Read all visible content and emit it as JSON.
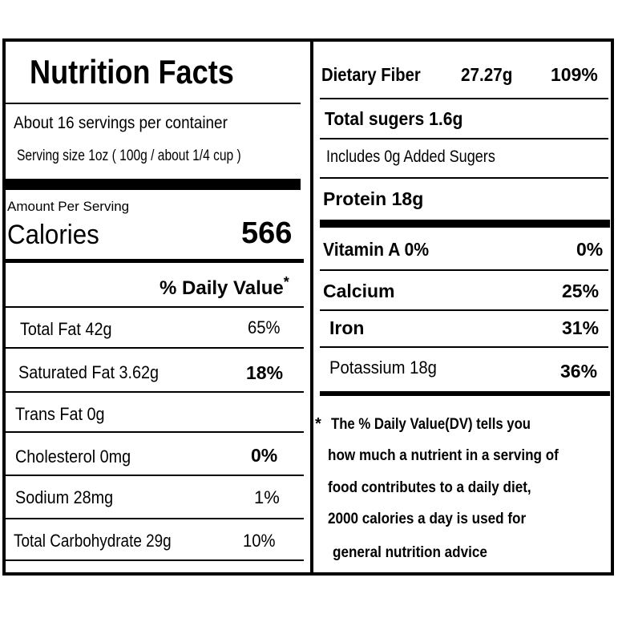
{
  "title": "Nutrition Facts",
  "servings_per_container": "About 16 servings per container",
  "serving_size": "Serving size 1oz ( 100g / about 1/4 cup )",
  "amount_per_serving": "Amount Per Serving",
  "calories_label": "Calories",
  "calories_value": "566",
  "daily_value_header": "% Daily Value",
  "daily_value_asterisk": "*",
  "left_rows": [
    {
      "label": "Total Fat  42g",
      "dv": "65%"
    },
    {
      "label": "Saturated Fat 3.62g",
      "dv": "18%"
    },
    {
      "label": "Trans Fat 0g",
      "dv": ""
    },
    {
      "label": "Cholesterol  0mg",
      "dv": "0%"
    },
    {
      "label": "Sodium  28mg",
      "dv": "1%"
    },
    {
      "label": "Total Carbohydrate  29g",
      "dv": "10%"
    }
  ],
  "dietary_fiber": {
    "label": "Dietary Fiber",
    "amount": "27.27g",
    "dv": "109%"
  },
  "total_sugars": "Total sugers 1.6g",
  "added_sugars": "Includes 0g Added Sugers",
  "protein": "Protein 18g",
  "vitamins": [
    {
      "label": "Vitamin A  0%",
      "dv": "0%"
    },
    {
      "label": "Calcium",
      "dv": "25%"
    },
    {
      "label": "Iron",
      "dv": "31%"
    },
    {
      "label": "Potassium  18g",
      "dv": "36%"
    }
  ],
  "footnote": {
    "asterisk": "*",
    "lines": [
      "The % Daily Value(DV)  tells you",
      "how much a nutrient in a serving of",
      "food contributes to a daily diet,",
      "2000 calories a day is used for",
      "general nutrition advice"
    ]
  }
}
